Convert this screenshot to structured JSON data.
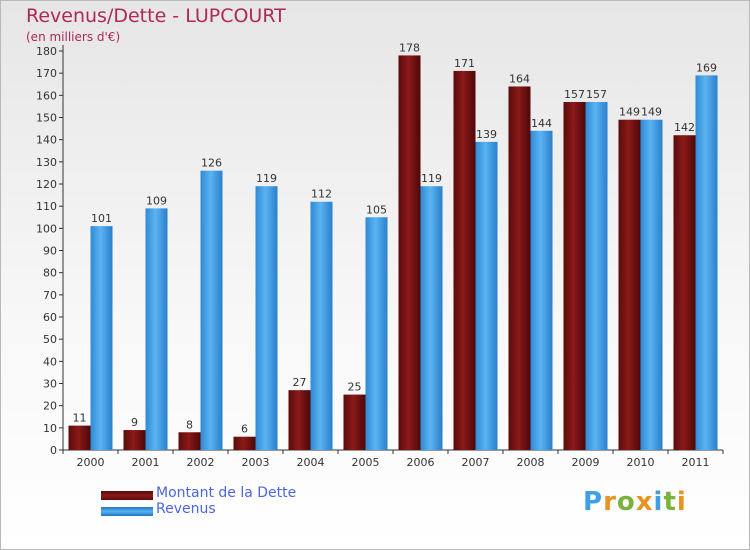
{
  "title": "Revenus/Dette - LUPCOURT",
  "subtitle": "(en milliers d'€)",
  "chart_data": {
    "type": "bar",
    "categories": [
      "2000",
      "2001",
      "2002",
      "2003",
      "2004",
      "2005",
      "2006",
      "2007",
      "2008",
      "2009",
      "2010",
      "2011"
    ],
    "series": [
      {
        "name": "Montant de la Dette",
        "color": "#8b1a1a",
        "values": [
          11,
          9,
          8,
          6,
          27,
          25,
          178,
          171,
          164,
          157,
          149,
          142
        ]
      },
      {
        "name": "Revenus",
        "color": "#3f9fe6",
        "values": [
          101,
          109,
          126,
          119,
          112,
          105,
          119,
          139,
          144,
          157,
          149,
          169
        ]
      }
    ],
    "ylim": [
      0,
      180
    ],
    "yticks": [
      0,
      10,
      20,
      30,
      40,
      50,
      60,
      70,
      80,
      90,
      100,
      110,
      120,
      130,
      140,
      150,
      160,
      170,
      180
    ],
    "grid": false,
    "legend_position": "bottom-left"
  },
  "logo": {
    "text": "Proxiti",
    "letter_colors": [
      "#3f9fe6",
      "#e8941f",
      "#7ab33c",
      "#e8941f",
      "#3f9fe6",
      "#7ab33c",
      "#e8941f"
    ]
  }
}
